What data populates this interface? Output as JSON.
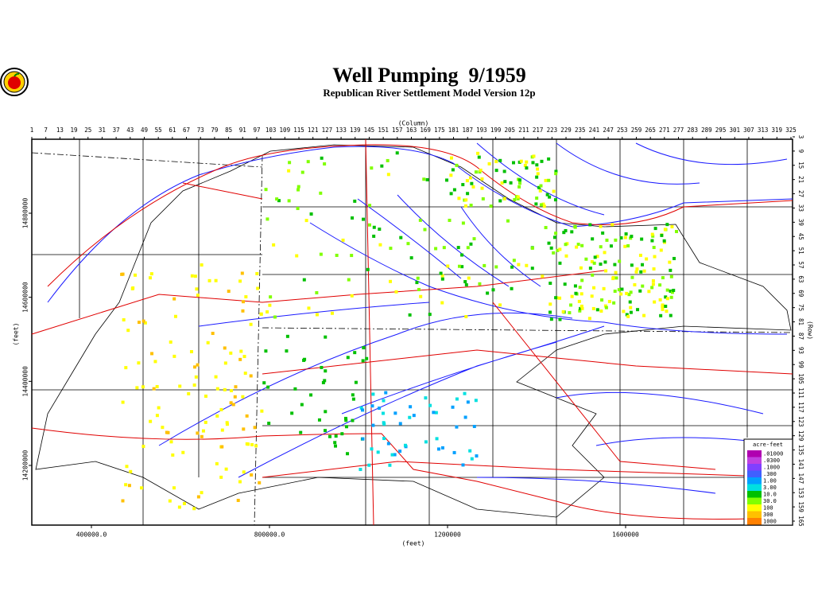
{
  "header": {
    "title": "Well Pumping  9/1959",
    "subtitle": "Republican River Settlement Model Version 12p"
  },
  "map": {
    "column_label": "(Column)",
    "row_label": "(Row)",
    "x_label": "(feet)",
    "y_label": "(feet)",
    "columns": [
      1,
      7,
      13,
      19,
      25,
      31,
      37,
      43,
      49,
      55,
      61,
      67,
      73,
      79,
      85,
      91,
      97,
      103,
      109,
      115,
      121,
      127,
      133,
      139,
      145,
      151,
      157,
      163,
      169,
      175,
      181,
      187,
      193,
      199,
      205,
      211,
      217,
      223,
      229,
      235,
      241,
      247,
      253,
      259,
      265,
      271,
      277,
      283,
      289,
      295,
      301,
      307,
      313,
      319,
      325
    ],
    "rows": [
      3,
      9,
      15,
      21,
      27,
      33,
      39,
      45,
      51,
      57,
      63,
      69,
      75,
      81,
      87,
      93,
      99,
      105,
      111,
      117,
      123,
      129,
      135,
      141,
      147,
      153,
      159,
      165
    ],
    "x_ticks": [
      {
        "value": 400000,
        "label": "400000.0"
      },
      {
        "value": 800000,
        "label": "800000.0"
      },
      1200000,
      1600000
    ],
    "y_ticks": [
      14800000,
      14600000,
      14400000,
      14200000
    ]
  },
  "legend": {
    "title": "acre-feet",
    "items": [
      {
        "label": ".01000",
        "color": "#b000b0"
      },
      {
        "label": ".0300",
        "color": "#c040e0"
      },
      {
        "label": ".1000",
        "color": "#8040ff"
      },
      {
        "label": ".300",
        "color": "#4060ff"
      },
      {
        "label": "1.00",
        "color": "#00a0ff"
      },
      {
        "label": "3.00",
        "color": "#00e0e0"
      },
      {
        "label": "10.0",
        "color": "#00c000"
      },
      {
        "label": "30.0",
        "color": "#80ff00"
      },
      {
        "label": "100",
        "color": "#ffff00"
      },
      {
        "label": "300",
        "color": "#ffc000"
      },
      {
        "label": "1000",
        "color": "#ff8000"
      }
    ]
  }
}
